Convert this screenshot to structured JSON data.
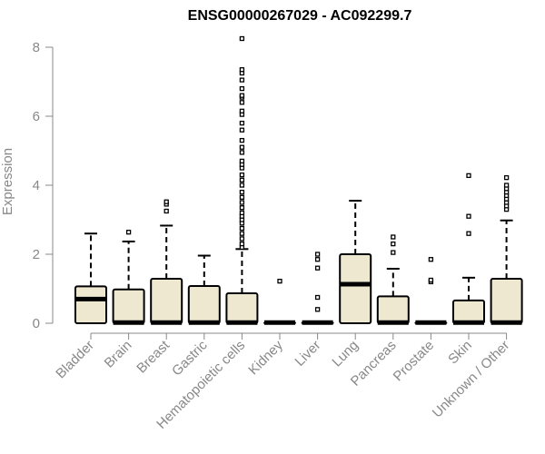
{
  "chart_data": {
    "type": "boxplot",
    "title": "ENSG00000267029 - AC092299.7",
    "xlabel": "",
    "ylabel": "Expression",
    "ylim": [
      0,
      8.3
    ],
    "yticks": [
      0,
      2,
      4,
      6,
      8
    ],
    "colors": {
      "box_fill": "#EEE8D0",
      "stroke": "#000000",
      "axis": "#888888"
    },
    "categories": [
      "Bladder",
      "Brain",
      "Breast",
      "Gastric",
      "Hematopoietic cells",
      "Kidney",
      "Liver",
      "Lung",
      "Pancreas",
      "Prostate",
      "Skin",
      "Unknown / Other"
    ],
    "boxes": [
      {
        "category": "Bladder",
        "whisker_low": 0,
        "q1": 0,
        "median": 0.7,
        "q3": 1.07,
        "whisker_high": 2.6,
        "outliers": []
      },
      {
        "category": "Brain",
        "whisker_low": 0,
        "q1": 0,
        "median": 0.02,
        "q3": 0.98,
        "whisker_high": 2.37,
        "outliers": [
          2.64
        ]
      },
      {
        "category": "Breast",
        "whisker_low": 0,
        "q1": 0,
        "median": 0.02,
        "q3": 1.29,
        "whisker_high": 2.83,
        "outliers": [
          3.25,
          3.45,
          3.52
        ]
      },
      {
        "category": "Gastric",
        "whisker_low": 0,
        "q1": 0,
        "median": 0.02,
        "q3": 1.08,
        "whisker_high": 1.96,
        "outliers": []
      },
      {
        "category": "Hematopoietic cells",
        "whisker_low": 0,
        "q1": 0,
        "median": 0.02,
        "q3": 0.87,
        "whisker_high": 2.15,
        "outliers": [
          2.2,
          2.3,
          2.45,
          2.6,
          2.75,
          2.9,
          3.0,
          3.1,
          3.2,
          3.35,
          3.5,
          3.65,
          3.8,
          4.0,
          4.15,
          4.3,
          4.5,
          4.6,
          4.7,
          4.95,
          5.1,
          5.3,
          5.6,
          5.8,
          6.05,
          6.15,
          6.4,
          6.55,
          6.6,
          6.8,
          7.05,
          7.25,
          7.35,
          8.25
        ]
      },
      {
        "category": "Kidney",
        "whisker_low": 0,
        "q1": 0,
        "median": 0.02,
        "q3": 0.02,
        "whisker_high": 0.02,
        "outliers": [
          1.22
        ]
      },
      {
        "category": "Liver",
        "whisker_low": 0,
        "q1": 0,
        "median": 0.02,
        "q3": 0.02,
        "whisker_high": 0.02,
        "outliers": [
          0.4,
          0.75,
          1.6,
          1.85,
          2.0
        ]
      },
      {
        "category": "Lung",
        "whisker_low": 0,
        "q1": 0,
        "median": 1.13,
        "q3": 2.0,
        "whisker_high": 3.55,
        "outliers": []
      },
      {
        "category": "Pancreas",
        "whisker_low": 0,
        "q1": 0,
        "median": 0.02,
        "q3": 0.78,
        "whisker_high": 1.58,
        "outliers": [
          2.05,
          2.3,
          2.5
        ]
      },
      {
        "category": "Prostate",
        "whisker_low": 0,
        "q1": 0,
        "median": 0.02,
        "q3": 0.02,
        "whisker_high": 0.02,
        "outliers": [
          1.2,
          1.25,
          1.85
        ]
      },
      {
        "category": "Skin",
        "whisker_low": 0,
        "q1": 0,
        "median": 0.02,
        "q3": 0.66,
        "whisker_high": 1.32,
        "outliers": [
          2.6,
          3.1,
          4.28
        ]
      },
      {
        "category": "Unknown / Other",
        "whisker_low": 0,
        "q1": 0,
        "median": 0.02,
        "q3": 1.29,
        "whisker_high": 2.98,
        "outliers": [
          3.3,
          3.4,
          3.5,
          3.6,
          3.7,
          3.8,
          3.9,
          4.0,
          4.22
        ]
      }
    ]
  }
}
